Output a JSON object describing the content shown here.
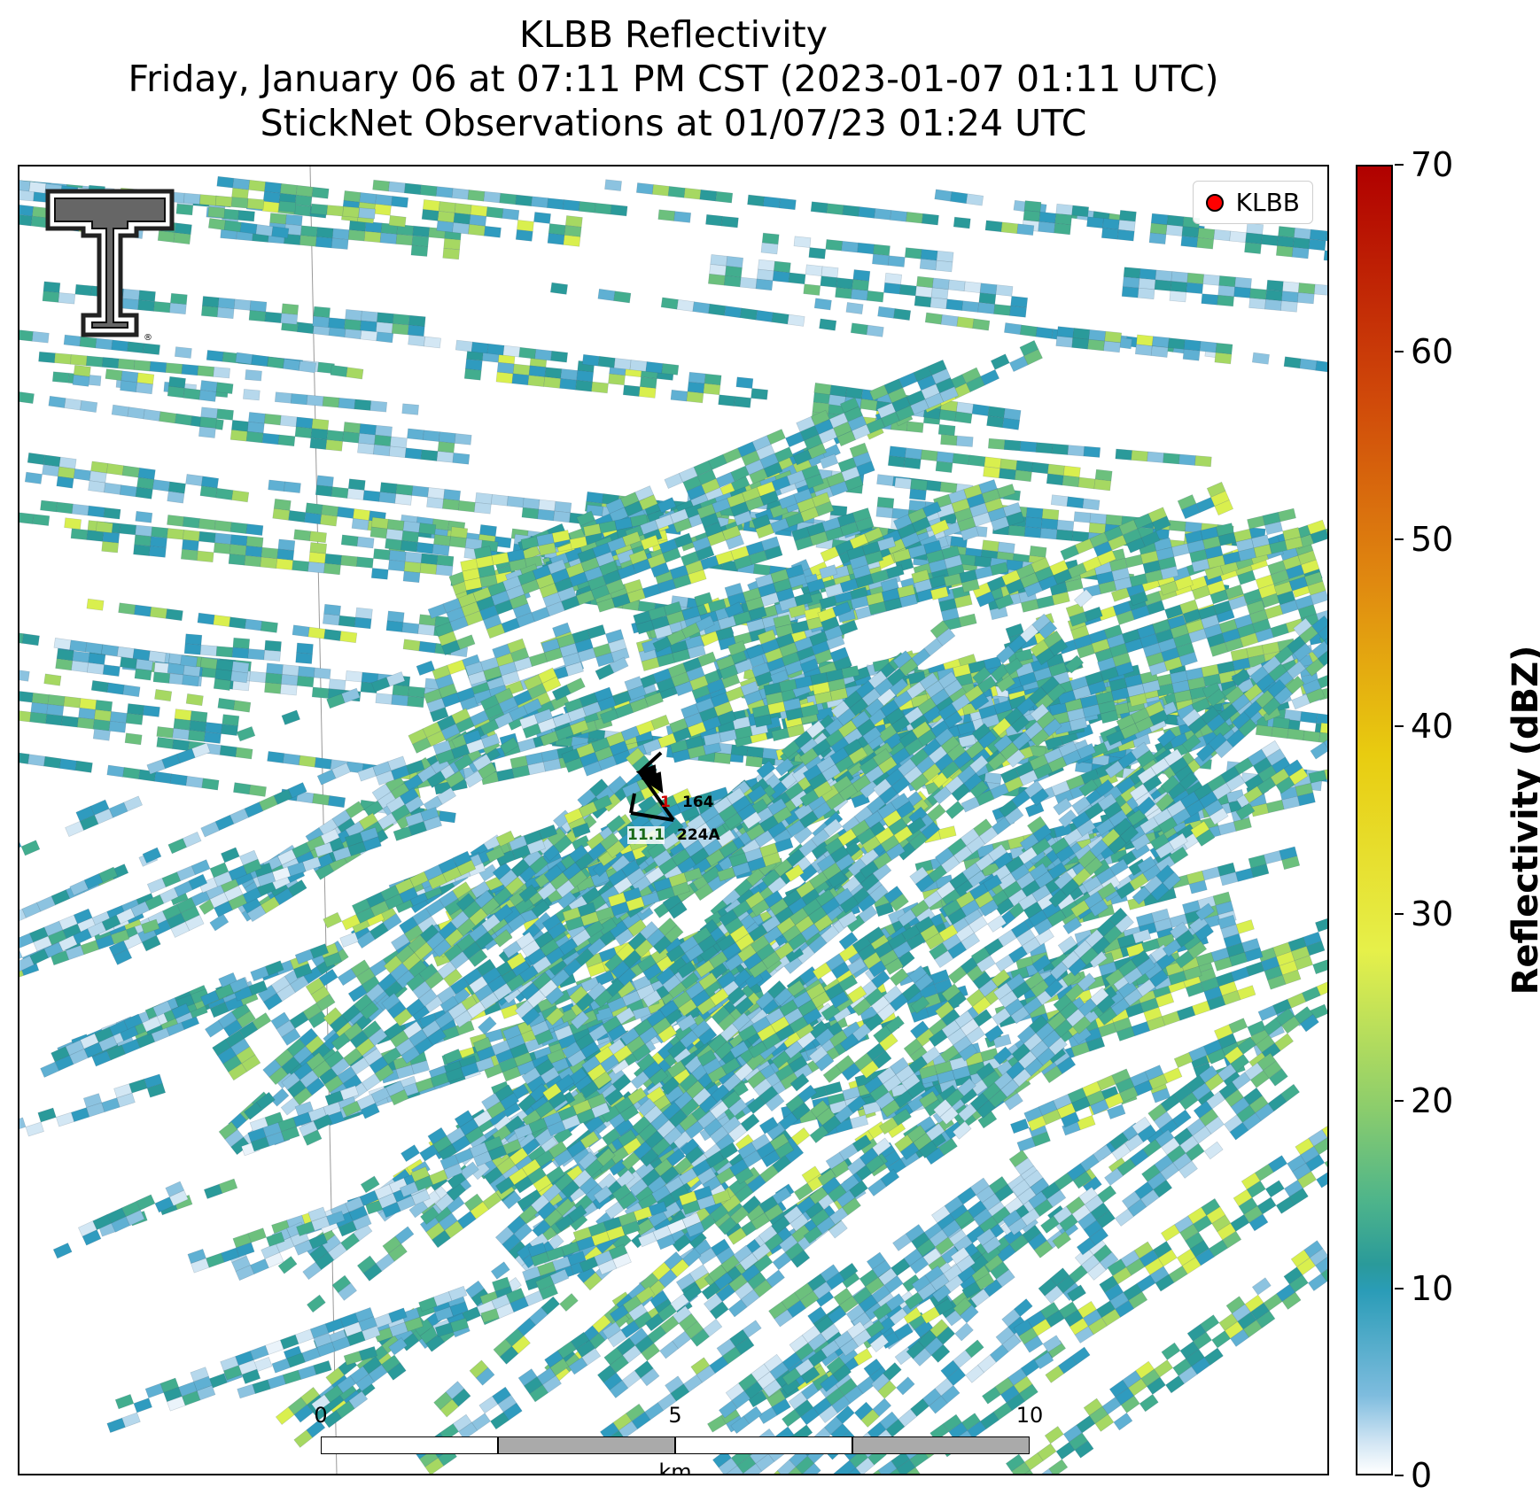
{
  "title": {
    "line1": "KLBB Reflectivity",
    "line2": "Friday, January 06 at 07:11 PM CST (2023-01-07 01:11 UTC)",
    "line3": "StickNet Observations at 01/07/23 01:24 UTC"
  },
  "legend": {
    "label": "KLBB",
    "marker_color": "#ff0000"
  },
  "logo": {
    "name": "texas-tech-double-t-logo"
  },
  "station_plot": {
    "value_top": "164",
    "value_top_red": "1",
    "value_bottom": "224A",
    "value_bottom_green": "11.1"
  },
  "scale_bar": {
    "ticks": [
      "0",
      "5",
      "10"
    ],
    "unit": "km"
  },
  "colorbar": {
    "label": "Reflectivity (dBZ)",
    "min": 0,
    "max": 70,
    "ticks": [
      "0",
      "10",
      "20",
      "30",
      "40",
      "50",
      "60",
      "70"
    ],
    "colors": [
      "#ffffff",
      "#7ebcde",
      "#2a9cb7",
      "#4fb58a",
      "#e6f04a",
      "#e8cc10",
      "#e08a10",
      "#b00000"
    ]
  }
}
